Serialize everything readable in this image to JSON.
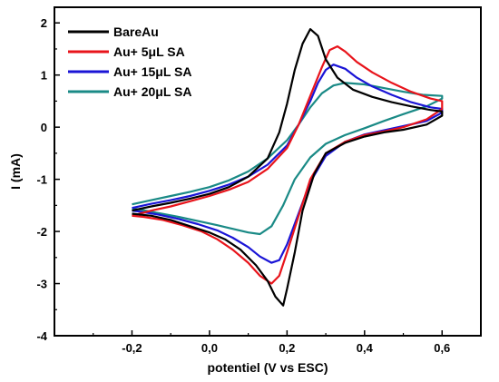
{
  "chart_data": {
    "type": "line",
    "title": "",
    "xlabel": "potentiel (V vs ESC)",
    "ylabel": "I (mA)",
    "xlim": [
      -0.4,
      0.7
    ],
    "ylim": [
      -4,
      2.3
    ],
    "xticks": [
      -0.2,
      0.0,
      0.2,
      0.4,
      0.6
    ],
    "xtick_labels": [
      "-0,2",
      "0,0",
      "0,2",
      "0,4",
      "0,6"
    ],
    "yticks": [
      -4,
      -3,
      -2,
      -1,
      0,
      1,
      2
    ],
    "ytick_labels": [
      "-4",
      "-3",
      "-2",
      "-1",
      "0",
      "1",
      "2"
    ],
    "grid": false,
    "legend_position": "top-left",
    "series": [
      {
        "name": "BareAu",
        "color": "#000000",
        "points": [
          [
            -0.2,
            -1.6
          ],
          [
            -0.15,
            -1.52
          ],
          [
            -0.1,
            -1.45
          ],
          [
            -0.05,
            -1.37
          ],
          [
            0.0,
            -1.28
          ],
          [
            0.05,
            -1.15
          ],
          [
            0.1,
            -0.95
          ],
          [
            0.15,
            -0.6
          ],
          [
            0.18,
            -0.1
          ],
          [
            0.2,
            0.45
          ],
          [
            0.22,
            1.1
          ],
          [
            0.24,
            1.6
          ],
          [
            0.26,
            1.88
          ],
          [
            0.28,
            1.75
          ],
          [
            0.3,
            1.3
          ],
          [
            0.33,
            0.95
          ],
          [
            0.37,
            0.72
          ],
          [
            0.42,
            0.58
          ],
          [
            0.47,
            0.48
          ],
          [
            0.52,
            0.4
          ],
          [
            0.57,
            0.33
          ],
          [
            0.6,
            0.3
          ],
          [
            0.6,
            0.22
          ],
          [
            0.56,
            0.05
          ],
          [
            0.5,
            -0.05
          ],
          [
            0.45,
            -0.1
          ],
          [
            0.4,
            -0.18
          ],
          [
            0.35,
            -0.3
          ],
          [
            0.3,
            -0.5
          ],
          [
            0.27,
            -0.9
          ],
          [
            0.24,
            -1.6
          ],
          [
            0.22,
            -2.4
          ],
          [
            0.2,
            -3.1
          ],
          [
            0.19,
            -3.42
          ],
          [
            0.17,
            -3.25
          ],
          [
            0.15,
            -2.95
          ],
          [
            0.12,
            -2.65
          ],
          [
            0.08,
            -2.35
          ],
          [
            0.04,
            -2.15
          ],
          [
            0.0,
            -2.02
          ],
          [
            -0.05,
            -1.9
          ],
          [
            -0.1,
            -1.78
          ],
          [
            -0.15,
            -1.7
          ],
          [
            -0.2,
            -1.66
          ]
        ]
      },
      {
        "name": "Au+ 5μL SA",
        "color": "#e8141b",
        "points": [
          [
            -0.2,
            -1.7
          ],
          [
            -0.15,
            -1.6
          ],
          [
            -0.1,
            -1.52
          ],
          [
            -0.05,
            -1.42
          ],
          [
            0.0,
            -1.32
          ],
          [
            0.05,
            -1.2
          ],
          [
            0.1,
            -1.05
          ],
          [
            0.15,
            -0.8
          ],
          [
            0.2,
            -0.4
          ],
          [
            0.23,
            0.05
          ],
          [
            0.26,
            0.6
          ],
          [
            0.29,
            1.15
          ],
          [
            0.31,
            1.48
          ],
          [
            0.33,
            1.55
          ],
          [
            0.35,
            1.45
          ],
          [
            0.38,
            1.25
          ],
          [
            0.42,
            1.05
          ],
          [
            0.47,
            0.85
          ],
          [
            0.52,
            0.68
          ],
          [
            0.57,
            0.55
          ],
          [
            0.6,
            0.5
          ],
          [
            0.6,
            0.35
          ],
          [
            0.56,
            0.15
          ],
          [
            0.5,
            0.0
          ],
          [
            0.45,
            -0.08
          ],
          [
            0.4,
            -0.15
          ],
          [
            0.35,
            -0.28
          ],
          [
            0.3,
            -0.5
          ],
          [
            0.26,
            -1.0
          ],
          [
            0.23,
            -1.7
          ],
          [
            0.2,
            -2.4
          ],
          [
            0.18,
            -2.85
          ],
          [
            0.16,
            -3.0
          ],
          [
            0.13,
            -2.85
          ],
          [
            0.1,
            -2.6
          ],
          [
            0.06,
            -2.35
          ],
          [
            0.02,
            -2.15
          ],
          [
            -0.02,
            -2.0
          ],
          [
            -0.07,
            -1.88
          ],
          [
            -0.12,
            -1.78
          ],
          [
            -0.17,
            -1.72
          ],
          [
            -0.2,
            -1.7
          ]
        ]
      },
      {
        "name": "Au+ 15μL SA",
        "color": "#1a14d6",
        "points": [
          [
            -0.2,
            -1.55
          ],
          [
            -0.15,
            -1.47
          ],
          [
            -0.1,
            -1.4
          ],
          [
            -0.05,
            -1.32
          ],
          [
            0.0,
            -1.22
          ],
          [
            0.05,
            -1.1
          ],
          [
            0.1,
            -0.95
          ],
          [
            0.15,
            -0.72
          ],
          [
            0.2,
            -0.35
          ],
          [
            0.23,
            0.05
          ],
          [
            0.26,
            0.5
          ],
          [
            0.28,
            0.85
          ],
          [
            0.3,
            1.1
          ],
          [
            0.32,
            1.2
          ],
          [
            0.35,
            1.12
          ],
          [
            0.38,
            0.95
          ],
          [
            0.42,
            0.78
          ],
          [
            0.47,
            0.62
          ],
          [
            0.52,
            0.48
          ],
          [
            0.57,
            0.38
          ],
          [
            0.6,
            0.35
          ],
          [
            0.6,
            0.28
          ],
          [
            0.56,
            0.12
          ],
          [
            0.5,
            0.02
          ],
          [
            0.45,
            -0.06
          ],
          [
            0.4,
            -0.14
          ],
          [
            0.35,
            -0.28
          ],
          [
            0.3,
            -0.55
          ],
          [
            0.26,
            -1.05
          ],
          [
            0.23,
            -1.65
          ],
          [
            0.2,
            -2.25
          ],
          [
            0.18,
            -2.55
          ],
          [
            0.16,
            -2.6
          ],
          [
            0.13,
            -2.48
          ],
          [
            0.1,
            -2.3
          ],
          [
            0.06,
            -2.12
          ],
          [
            0.02,
            -1.98
          ],
          [
            -0.03,
            -1.86
          ],
          [
            -0.08,
            -1.76
          ],
          [
            -0.13,
            -1.68
          ],
          [
            -0.18,
            -1.62
          ],
          [
            -0.2,
            -1.6
          ]
        ]
      },
      {
        "name": "Au+ 20μL SA",
        "color": "#1a8a86",
        "points": [
          [
            -0.2,
            -1.48
          ],
          [
            -0.15,
            -1.4
          ],
          [
            -0.1,
            -1.32
          ],
          [
            -0.05,
            -1.24
          ],
          [
            0.0,
            -1.15
          ],
          [
            0.05,
            -1.02
          ],
          [
            0.1,
            -0.85
          ],
          [
            0.15,
            -0.6
          ],
          [
            0.2,
            -0.25
          ],
          [
            0.23,
            0.05
          ],
          [
            0.26,
            0.38
          ],
          [
            0.29,
            0.65
          ],
          [
            0.32,
            0.8
          ],
          [
            0.35,
            0.85
          ],
          [
            0.4,
            0.82
          ],
          [
            0.45,
            0.75
          ],
          [
            0.5,
            0.68
          ],
          [
            0.55,
            0.62
          ],
          [
            0.6,
            0.6
          ],
          [
            0.6,
            0.55
          ],
          [
            0.56,
            0.4
          ],
          [
            0.5,
            0.25
          ],
          [
            0.45,
            0.12
          ],
          [
            0.4,
            -0.02
          ],
          [
            0.35,
            -0.15
          ],
          [
            0.3,
            -0.32
          ],
          [
            0.26,
            -0.58
          ],
          [
            0.22,
            -1.0
          ],
          [
            0.19,
            -1.5
          ],
          [
            0.16,
            -1.9
          ],
          [
            0.13,
            -2.05
          ],
          [
            0.1,
            -2.02
          ],
          [
            0.06,
            -1.95
          ],
          [
            0.02,
            -1.88
          ],
          [
            -0.03,
            -1.8
          ],
          [
            -0.08,
            -1.72
          ],
          [
            -0.13,
            -1.65
          ],
          [
            -0.18,
            -1.58
          ],
          [
            -0.2,
            -1.56
          ]
        ]
      }
    ]
  }
}
